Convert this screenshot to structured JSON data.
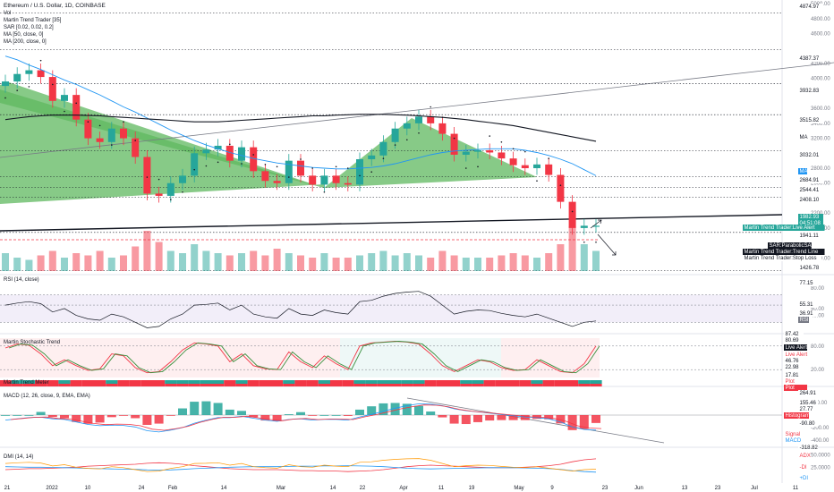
{
  "header": {
    "title": "Ethereum / U.S. Dollar, 1D, COINBASE",
    "indicators": [
      "Vol",
      "Martin Trend Trader [35]",
      "SAR [0.02, 0.02, 0.2]",
      "MA [50, close, 0]",
      "MA [200, close, 0]"
    ]
  },
  "panes": {
    "rsi_title": "RSI (14, close)",
    "stoch_title": "Martin Stochastic Trend",
    "meter_title": "Martin Trend Meter",
    "macd_title": "MACD (12, 26, close, 9, EMA, EMA)",
    "dmi_title": "DMI (14, 14)"
  },
  "price_axis": {
    "ticks": [
      "5000.00",
      "4800.00",
      "4600.00",
      "4200.00",
      "4000.00",
      "3600.00",
      "3400.00",
      "3200.00",
      "2800.00",
      "2600.00",
      "2200.00",
      "2000.00",
      "1600.00"
    ]
  },
  "rsi_axis": {
    "ticks": [
      "80.00",
      "50.00",
      "40.00"
    ]
  },
  "stoch_axis": {
    "ticks": [
      "80.00",
      "20.00"
    ]
  },
  "macd_axis": {
    "ticks": [
      "200.00",
      "-200.00",
      "-400.00"
    ]
  },
  "dmi_axis": {
    "ticks": [
      "50.0000",
      "25.0000"
    ]
  },
  "time_axis": {
    "labels": [
      "21",
      "2022",
      "10",
      "24",
      "Feb",
      "14",
      "Mar",
      "14",
      "22",
      "Apr",
      "11",
      "19",
      "May",
      "9",
      "23",
      "Jun",
      "13",
      "23",
      "Jul",
      "11"
    ]
  },
  "price_tags": [
    {
      "text": "4874.97",
      "color": "#131722"
    },
    {
      "text": "4387.37",
      "color": "#131722"
    },
    {
      "text": "3932.83",
      "color": "#131722"
    },
    {
      "text": "3515.82",
      "color": "#131722"
    },
    {
      "text": "MA",
      "color": "#131722"
    },
    {
      "text": "3032.01",
      "color": "#131722"
    },
    {
      "text": "MA",
      "color": "#2196f3"
    },
    {
      "text": "2684.91",
      "color": "#131722"
    },
    {
      "text": "2544.41",
      "color": "#131722"
    },
    {
      "text": "2408.10",
      "color": "#131722"
    },
    {
      "text": "1982.93",
      "color": "#26a69a"
    },
    {
      "text": "04:51:08",
      "color": "#26a69a"
    },
    {
      "text": "1941.11",
      "color": "#131722"
    },
    {
      "text": "1426.78",
      "color": "#131722"
    }
  ],
  "side_labels": [
    {
      "text": "Martin Trend Trader:Live Alert",
      "bg": "#26a69a",
      "fg": "#ffffff"
    },
    {
      "text": "SAR:ParabolicSAR",
      "bg": "#131722",
      "fg": "#ffffff"
    },
    {
      "text": "Martin Trend Trader:Trend Line",
      "bg": "#131722",
      "fg": "#ffffff"
    },
    {
      "text": "Martin Trend Trader:Stop Loss",
      "bg": "#ffffff",
      "fg": "#131722"
    }
  ],
  "rsi_tags": [
    {
      "text": "77.15",
      "color": "#131722"
    },
    {
      "text": "55.31",
      "color": "#131722"
    },
    {
      "text": "36.91",
      "color": "#131722"
    },
    {
      "text": "RSI",
      "color": "#787b86"
    }
  ],
  "stoch_tags": [
    {
      "text": "87.42",
      "color": "#131722"
    },
    {
      "text": "80.69",
      "color": "#131722"
    },
    {
      "text": "Live Alert",
      "color": "#131722"
    },
    {
      "text": "Live Alert",
      "color": "#f23645"
    },
    {
      "text": "46.76",
      "color": "#131722"
    },
    {
      "text": "22.98",
      "color": "#131722"
    },
    {
      "text": "17.81",
      "color": "#131722"
    },
    {
      "text": "Plot",
      "color": "#f23645"
    },
    {
      "text": "Plot",
      "color": "#ffffff"
    }
  ],
  "macd_tags": [
    {
      "text": "264.91",
      "color": "#131722"
    },
    {
      "text": "155.46",
      "color": "#131722"
    },
    {
      "text": "27.77",
      "color": "#131722"
    },
    {
      "text": "Histogram",
      "color": "#ffffff"
    },
    {
      "text": "-90.80",
      "color": "#131722"
    },
    {
      "text": "Signal",
      "color": "#f23645"
    },
    {
      "text": "MACD",
      "color": "#2196f3"
    },
    {
      "text": "-318.82",
      "color": "#131722"
    }
  ],
  "dmi_tags": [
    {
      "text": "ADX",
      "color": "#f23645"
    },
    {
      "text": "-DI",
      "color": "#f23645"
    },
    {
      "text": "+DI",
      "color": "#2196f3"
    }
  ],
  "colors": {
    "up": "#26a69a",
    "down": "#f23645",
    "accent": "#2196f3",
    "grid": "#e0e3eb"
  },
  "chart_data": {
    "type": "candlestick",
    "title": "Ethereum / U.S. Dollar, 1D, COINBASE",
    "xlabel": "",
    "ylabel": "",
    "ylim": [
      1400,
      5050
    ],
    "last_price": 1982.93,
    "dates": [
      "2021-12-18",
      "2021-12-21",
      "2021-12-24",
      "2021-12-27",
      "2021-12-30",
      "2022-01-02",
      "2022-01-05",
      "2022-01-08",
      "2022-01-11",
      "2022-01-14",
      "2022-01-17",
      "2022-01-20",
      "2022-01-23",
      "2022-01-26",
      "2022-01-29",
      "2022-02-01",
      "2022-02-04",
      "2022-02-07",
      "2022-02-10",
      "2022-02-13",
      "2022-02-16",
      "2022-02-19",
      "2022-02-22",
      "2022-02-25",
      "2022-02-28",
      "2022-03-03",
      "2022-03-06",
      "2022-03-09",
      "2022-03-12",
      "2022-03-15",
      "2022-03-18",
      "2022-03-21",
      "2022-03-24",
      "2022-03-27",
      "2022-03-30",
      "2022-04-02",
      "2022-04-05",
      "2022-04-08",
      "2022-04-11",
      "2022-04-14",
      "2022-04-17",
      "2022-04-20",
      "2022-04-23",
      "2022-04-26",
      "2022-04-29",
      "2022-05-02",
      "2022-05-05",
      "2022-05-08",
      "2022-05-11",
      "2022-05-14",
      "2022-05-17"
    ],
    "close": [
      3960,
      4060,
      4110,
      4020,
      3700,
      3780,
      3450,
      3200,
      3150,
      3330,
      3200,
      2950,
      2460,
      2430,
      2600,
      2700,
      3000,
      3050,
      3100,
      2900,
      3080,
      2760,
      2630,
      2600,
      2900,
      2700,
      2580,
      2700,
      2600,
      2580,
      2920,
      2970,
      3150,
      3330,
      3400,
      3490,
      3400,
      3260,
      2980,
      3020,
      3040,
      3010,
      2930,
      2840,
      2800,
      2850,
      2710,
      2350,
      2000,
      2030,
      2030
    ],
    "volume_pct": [
      40,
      30,
      25,
      35,
      45,
      30,
      40,
      35,
      45,
      30,
      35,
      55,
      90,
      65,
      45,
      40,
      60,
      45,
      40,
      35,
      40,
      45,
      35,
      50,
      40,
      35,
      30,
      40,
      30,
      30,
      35,
      40,
      45,
      35,
      40,
      35,
      30,
      45,
      35,
      30,
      30,
      30,
      35,
      40,
      35,
      30,
      40,
      60,
      100,
      60,
      45
    ],
    "ma50": [
      4300,
      4250,
      4180,
      4120,
      4050,
      3980,
      3920,
      3850,
      3780,
      3700,
      3620,
      3550,
      3470,
      3390,
      3310,
      3240,
      3170,
      3110,
      3060,
      3010,
      2970,
      2930,
      2900,
      2870,
      2850,
      2830,
      2810,
      2800,
      2790,
      2790,
      2800,
      2810,
      2830,
      2860,
      2900,
      2940,
      2980,
      3010,
      3030,
      3040,
      3050,
      3060,
      3060,
      3060,
      3040,
      3010,
      2970,
      2920,
      2860,
      2780,
      2700
    ],
    "ma200": [
      3450,
      3470,
      3490,
      3500,
      3510,
      3510,
      3510,
      3505,
      3500,
      3490,
      3480,
      3470,
      3460,
      3450,
      3440,
      3430,
      3420,
      3420,
      3420,
      3430,
      3440,
      3450,
      3460,
      3470,
      3480,
      3490,
      3500,
      3500,
      3510,
      3515,
      3520,
      3520,
      3520,
      3515,
      3510,
      3500,
      3490,
      3480,
      3465,
      3450,
      3430,
      3410,
      3390,
      3370,
      3340,
      3310,
      3280,
      3250,
      3220,
      3190,
      3160
    ],
    "rsi": [
      55,
      58,
      60,
      57,
      45,
      50,
      40,
      35,
      33,
      42,
      38,
      30,
      22,
      24,
      35,
      42,
      55,
      56,
      58,
      48,
      55,
      42,
      38,
      36,
      50,
      42,
      40,
      48,
      44,
      42,
      60,
      62,
      68,
      72,
      74,
      75,
      68,
      55,
      42,
      46,
      48,
      47,
      43,
      40,
      38,
      42,
      36,
      30,
      24,
      30,
      32
    ],
    "stoch_k": [
      75,
      85,
      82,
      60,
      30,
      45,
      30,
      18,
      22,
      60,
      55,
      25,
      12,
      15,
      40,
      70,
      88,
      85,
      80,
      40,
      60,
      30,
      22,
      20,
      65,
      40,
      25,
      55,
      35,
      20,
      80,
      88,
      90,
      92,
      90,
      85,
      60,
      30,
      15,
      30,
      45,
      40,
      25,
      18,
      20,
      45,
      30,
      15,
      12,
      35,
      80
    ],
    "macd": [
      -80,
      -60,
      -40,
      -35,
      -60,
      -70,
      -110,
      -150,
      -170,
      -160,
      -165,
      -190,
      -250,
      -270,
      -240,
      -200,
      -130,
      -80,
      -40,
      -40,
      -20,
      -50,
      -80,
      -100,
      -70,
      -60,
      -80,
      -70,
      -70,
      -80,
      -30,
      10,
      60,
      110,
      150,
      180,
      175,
      150,
      100,
      70,
      50,
      30,
      10,
      -10,
      -30,
      -40,
      -60,
      -110,
      -190,
      -230,
      -240
    ],
    "dmi_adx": [
      20,
      21,
      22,
      22,
      23,
      24,
      25,
      27,
      28,
      29,
      30,
      31,
      33,
      34,
      33,
      31,
      28,
      26,
      24,
      22,
      21,
      20,
      20,
      20,
      19,
      18,
      18,
      17,
      17,
      16,
      17,
      18,
      20,
      23,
      26,
      28,
      29,
      28,
      27,
      26,
      25,
      24,
      24,
      24,
      25,
      26,
      28,
      31,
      36,
      40,
      42
    ]
  }
}
